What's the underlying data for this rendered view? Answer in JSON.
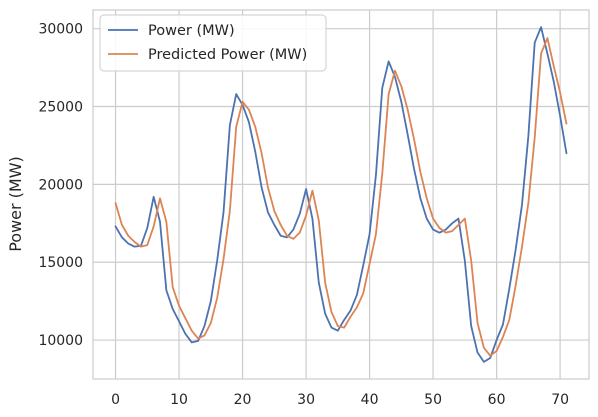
{
  "chart_data": {
    "type": "line",
    "title": "",
    "xlabel": "",
    "ylabel": "Power (MW)",
    "xlim": [
      -3.55,
      74.55
    ],
    "ylim": [
      7500,
      31200
    ],
    "x_ticks": [
      0,
      10,
      20,
      30,
      40,
      50,
      60,
      70
    ],
    "y_ticks": [
      10000,
      15000,
      20000,
      25000,
      30000
    ],
    "x_tick_labels": [
      "0",
      "10",
      "20",
      "30",
      "40",
      "50",
      "60",
      "70"
    ],
    "y_tick_labels": [
      "10000",
      "15000",
      "20000",
      "25000",
      "30000"
    ],
    "grid": true,
    "legend_position": "top-left",
    "series": [
      {
        "name": "Power (MW)",
        "color": "#4c72b0",
        "x": [
          0,
          1,
          2,
          3,
          4,
          5,
          6,
          7,
          8,
          9,
          10,
          11,
          12,
          13,
          14,
          15,
          16,
          17,
          18,
          19,
          20,
          21,
          22,
          23,
          24,
          25,
          26,
          27,
          28,
          29,
          30,
          31,
          32,
          33,
          34,
          35,
          36,
          37,
          38,
          39,
          40,
          41,
          42,
          43,
          44,
          45,
          46,
          47,
          48,
          49,
          50,
          51,
          52,
          53,
          54,
          55,
          56,
          57,
          58,
          59,
          60,
          61,
          62,
          63,
          64,
          65,
          66,
          67,
          68,
          69,
          70,
          71
        ],
        "values": [
          17300,
          16600,
          16200,
          16000,
          16050,
          17200,
          19200,
          17600,
          13200,
          12000,
          11200,
          10400,
          9850,
          9950,
          10900,
          12500,
          15100,
          18200,
          23800,
          25800,
          25100,
          24000,
          22100,
          19800,
          18200,
          17400,
          16700,
          16600,
          17100,
          18100,
          19700,
          17800,
          13700,
          11700,
          10800,
          10600,
          11300,
          11900,
          12900,
          14800,
          16800,
          20600,
          26200,
          27900,
          26900,
          25300,
          23200,
          21000,
          19100,
          17800,
          17100,
          16900,
          17100,
          17500,
          17800,
          15100,
          10900,
          9200,
          8600,
          8850,
          10000,
          11000,
          13300,
          15800,
          18700,
          23100,
          29100,
          30100,
          28400,
          26600,
          24400,
          22000
        ]
      },
      {
        "name": "Predicted Power (MW)",
        "color": "#dd8452",
        "x": [
          0,
          1,
          2,
          3,
          4,
          5,
          6,
          7,
          8,
          9,
          10,
          11,
          12,
          13,
          14,
          15,
          16,
          17,
          18,
          19,
          20,
          21,
          22,
          23,
          24,
          25,
          26,
          27,
          28,
          29,
          30,
          31,
          32,
          33,
          34,
          35,
          36,
          37,
          38,
          39,
          40,
          41,
          42,
          43,
          44,
          45,
          46,
          47,
          48,
          49,
          50,
          51,
          52,
          53,
          54,
          55,
          56,
          57,
          58,
          59,
          60,
          61,
          62,
          63,
          64,
          65,
          66,
          67,
          68,
          69,
          70,
          71
        ],
        "values": [
          18800,
          17400,
          16700,
          16300,
          16000,
          16100,
          17300,
          19100,
          17600,
          13400,
          12200,
          11400,
          10600,
          10100,
          10300,
          11100,
          12700,
          15200,
          18300,
          23700,
          25300,
          24800,
          23700,
          22000,
          19800,
          18300,
          17400,
          16700,
          16500,
          16900,
          18000,
          19600,
          17700,
          13700,
          11800,
          10900,
          10800,
          11500,
          12100,
          13000,
          14900,
          16800,
          20700,
          25800,
          27300,
          26300,
          24800,
          22900,
          20800,
          19100,
          17800,
          17200,
          16900,
          17000,
          17400,
          17800,
          15100,
          11100,
          9500,
          9000,
          9300,
          10200,
          11300,
          13500,
          16000,
          18800,
          23000,
          28400,
          29400,
          27600,
          25900,
          23900
        ]
      }
    ]
  }
}
